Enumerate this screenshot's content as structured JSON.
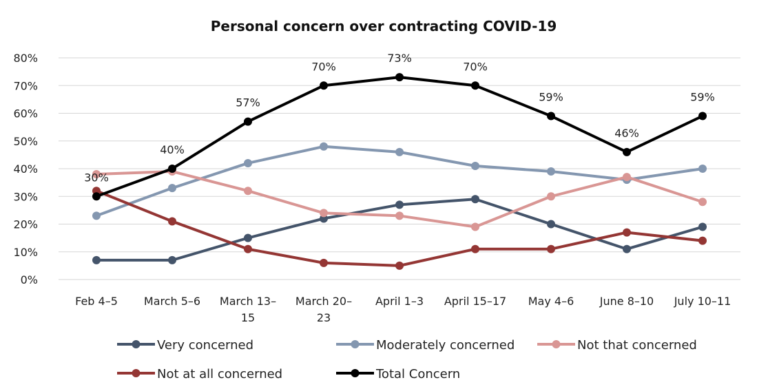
{
  "chart_data": {
    "type": "line",
    "title": "Personal concern over contracting COVID-19",
    "categories": [
      "Feb 4–5",
      "March 5–6",
      "March 13–15",
      "March 20–23",
      "April 1–3",
      "April 15–17",
      "May 4–6",
      "June 8–10",
      "July 10–11"
    ],
    "category_lines": [
      [
        "Feb 4–5"
      ],
      [
        "March 5–6"
      ],
      [
        "March 13–",
        "15"
      ],
      [
        "March 20–",
        "23"
      ],
      [
        "April 1–3"
      ],
      [
        "April 15–17"
      ],
      [
        "May 4–6"
      ],
      [
        "June 8–10"
      ],
      [
        "July 10–11"
      ]
    ],
    "y_ticks": [
      "0%",
      "10%",
      "20%",
      "30%",
      "40%",
      "50%",
      "60%",
      "70%",
      "80%"
    ],
    "ylim": [
      0,
      80
    ],
    "grid": "horizontal",
    "legend_position": "bottom",
    "series": [
      {
        "name": "Very concerned",
        "color": "#44546a",
        "values": [
          7,
          7,
          15,
          22,
          27,
          29,
          20,
          11,
          19
        ]
      },
      {
        "name": "Moderately concerned",
        "color": "#8497b0",
        "values": [
          23,
          33,
          42,
          48,
          46,
          41,
          39,
          36,
          40
        ]
      },
      {
        "name": "Not that concerned",
        "color": "#d99694",
        "values": [
          38,
          39,
          32,
          24,
          23,
          19,
          30,
          37,
          28
        ]
      },
      {
        "name": "Not at all concerned",
        "color": "#943634",
        "values": [
          32,
          21,
          11,
          6,
          5,
          11,
          11,
          17,
          14
        ]
      },
      {
        "name": "Total Concern",
        "color": "#000000",
        "values": [
          30,
          40,
          57,
          70,
          73,
          70,
          59,
          46,
          59
        ]
      }
    ],
    "data_labels": {
      "series": "Total Concern",
      "labels": [
        "30%",
        "40%",
        "57%",
        "70%",
        "73%",
        "70%",
        "59%",
        "46%",
        "59%"
      ]
    }
  }
}
